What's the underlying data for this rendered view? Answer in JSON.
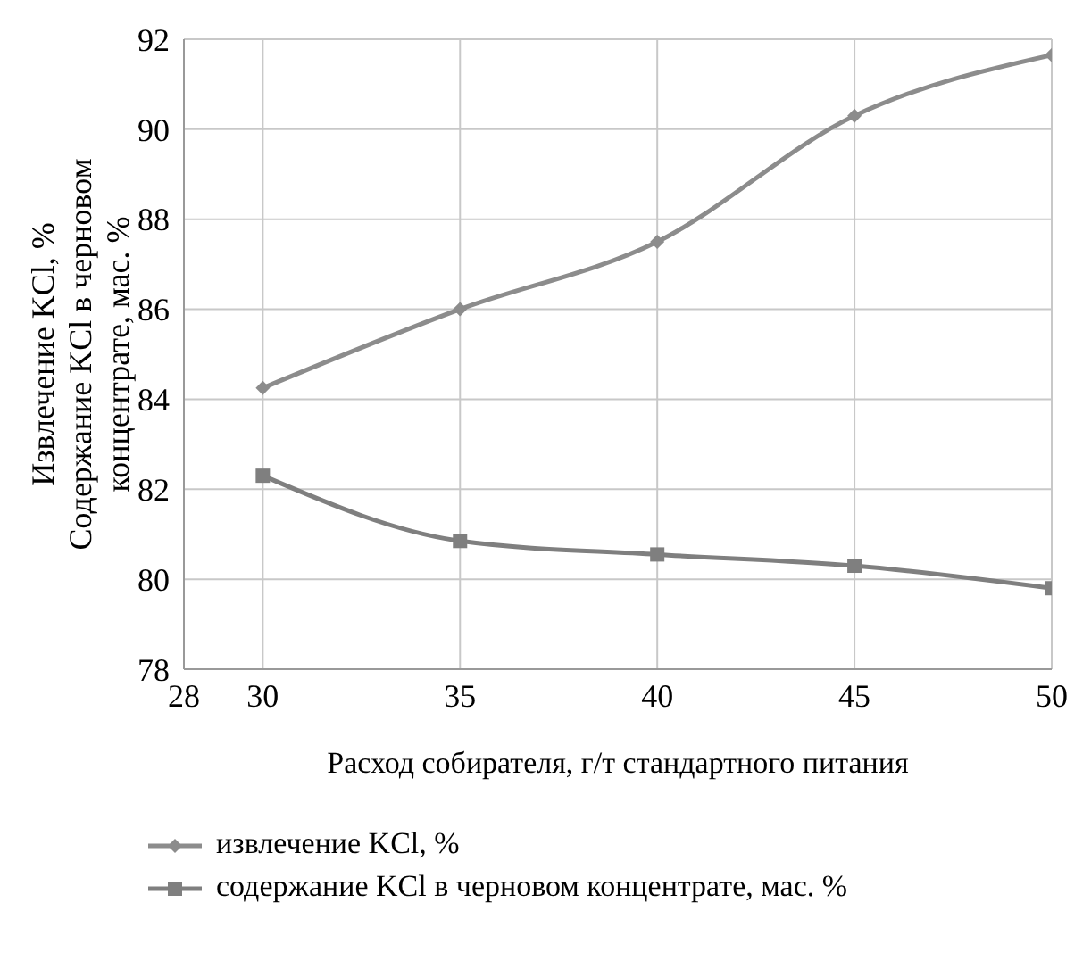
{
  "chart_data": {
    "type": "line",
    "xlabel": "Расход собирателя, г/т стандартного питания",
    "ylabel": "Извлечение KCl, % Содержание KCl в черновом концентрате, мас. %",
    "x": [
      30,
      35,
      40,
      45,
      50
    ],
    "xlim": [
      28,
      50
    ],
    "xticks": [
      28,
      30,
      35,
      40,
      45,
      50
    ],
    "ylim": [
      78,
      92
    ],
    "yticks": [
      78,
      80,
      82,
      84,
      86,
      88,
      90,
      92
    ],
    "grid": true,
    "legend": "bottom",
    "series": [
      {
        "name": "извлечение KCl, %",
        "color": "#8c8c8c",
        "marker": "diamond",
        "values": [
          84.25,
          86.0,
          87.5,
          90.3,
          91.65
        ]
      },
      {
        "name": "содержание KCl в черновом концентрате, мас. %",
        "color": "#7f7f7f",
        "marker": "square",
        "values": [
          82.3,
          80.85,
          80.55,
          80.3,
          79.8
        ]
      }
    ]
  }
}
